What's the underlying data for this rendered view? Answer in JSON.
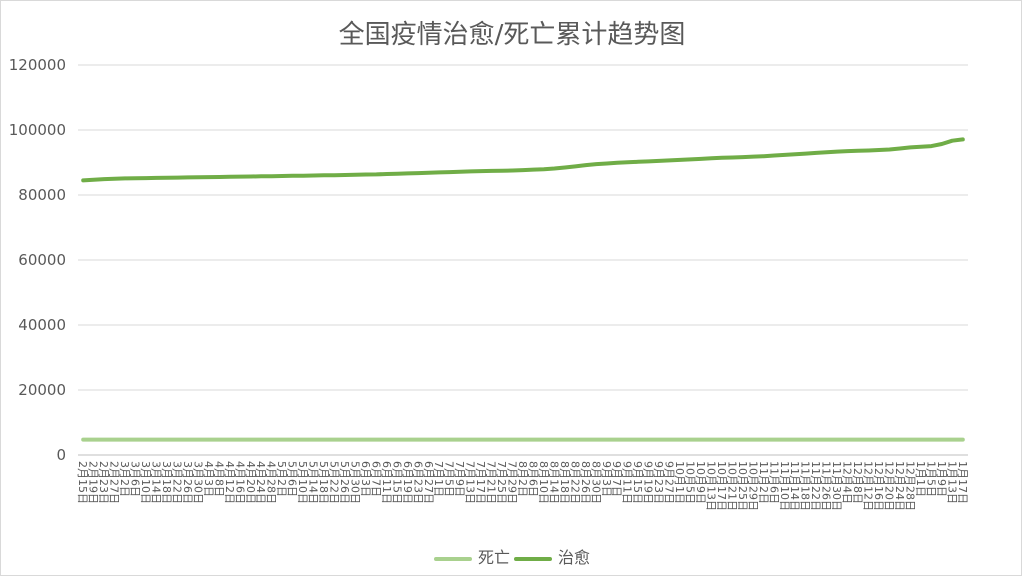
{
  "chart_data": {
    "type": "line",
    "title": "全国疫情治愈/死亡累计趋势图",
    "xlabel": "",
    "ylabel": "",
    "ylim": [
      0,
      120000
    ],
    "yticks": [
      0,
      20000,
      40000,
      60000,
      80000,
      100000,
      120000
    ],
    "grid": true,
    "legend_position": "bottom",
    "x": [
      "2月15日",
      "2月19日",
      "2月23日",
      "2月27日",
      "3月2日",
      "3月6日",
      "3月10日",
      "3月14日",
      "3月18日",
      "3月22日",
      "3月26日",
      "3月30日",
      "4月3日",
      "4月8日",
      "4月12日",
      "4月16日",
      "4月20日",
      "4月24日",
      "4月28日",
      "5月2日",
      "5月6日",
      "5月10日",
      "5月14日",
      "5月18日",
      "5月22日",
      "5月26日",
      "5月30日",
      "6月3日",
      "6月7日",
      "6月11日",
      "6月15日",
      "6月19日",
      "6月23日",
      "6月27日",
      "7月1日",
      "7月5日",
      "7月9日",
      "7月13日",
      "7月17日",
      "7月21日",
      "7月25日",
      "7月29日",
      "8月2日",
      "8月6日",
      "8月10日",
      "8月14日",
      "8月18日",
      "8月22日",
      "8月26日",
      "8月30日",
      "9月3日",
      "9月7日",
      "9月11日",
      "9月15日",
      "9月19日",
      "9月23日",
      "9月27日",
      "10月1日",
      "10月5日",
      "10月9日",
      "10月13日",
      "10月17日",
      "10月21日",
      "10月25日",
      "10月29日",
      "11月2日",
      "11月6日",
      "11月10日",
      "11月14日",
      "11月18日",
      "11月22日",
      "11月26日",
      "11月30日",
      "12月4日",
      "12月8日",
      "12月12日",
      "12月16日",
      "12月20日",
      "12月24日",
      "12月28日",
      "1月1日",
      "1月5日",
      "1月9日",
      "1月13日",
      "1月17日"
    ],
    "series": [
      {
        "name": "死亡",
        "color": "#a9d18e",
        "values": [
          4750,
          4750,
          4750,
          4750,
          4750,
          4750,
          4750,
          4750,
          4750,
          4750,
          4750,
          4750,
          4750,
          4750,
          4750,
          4750,
          4750,
          4750,
          4750,
          4750,
          4750,
          4750,
          4750,
          4750,
          4750,
          4750,
          4750,
          4750,
          4750,
          4750,
          4750,
          4750,
          4750,
          4750,
          4750,
          4750,
          4750,
          4750,
          4750,
          4750,
          4750,
          4750,
          4750,
          4750,
          4750,
          4750,
          4750,
          4750,
          4750,
          4750,
          4750,
          4750,
          4750,
          4750,
          4750,
          4750,
          4750,
          4750,
          4750,
          4750,
          4750,
          4750,
          4750,
          4750,
          4750,
          4750,
          4750,
          4750,
          4750,
          4750,
          4750,
          4750,
          4750,
          4750,
          4750,
          4750,
          4750,
          4750,
          4750,
          4750,
          4750,
          4750,
          4750,
          4750,
          4750
        ]
      },
      {
        "name": "治愈",
        "color": "#70ad47",
        "values": [
          84500,
          84700,
          84900,
          85000,
          85100,
          85150,
          85200,
          85250,
          85300,
          85350,
          85400,
          85450,
          85500,
          85550,
          85600,
          85650,
          85700,
          85750,
          85800,
          85850,
          85900,
          85950,
          86000,
          86050,
          86100,
          86150,
          86200,
          86300,
          86350,
          86450,
          86550,
          86650,
          86750,
          86850,
          86950,
          87050,
          87150,
          87250,
          87350,
          87400,
          87450,
          87550,
          87650,
          87800,
          87950,
          88150,
          88450,
          88800,
          89200,
          89500,
          89700,
          89900,
          90050,
          90200,
          90350,
          90500,
          90650,
          90800,
          90950,
          91100,
          91300,
          91450,
          91550,
          91650,
          91800,
          91950,
          92150,
          92350,
          92550,
          92750,
          92950,
          93150,
          93350,
          93500,
          93600,
          93700,
          93850,
          94000,
          94300,
          94650,
          94850,
          95050,
          95700,
          96700,
          97100
        ]
      }
    ]
  }
}
